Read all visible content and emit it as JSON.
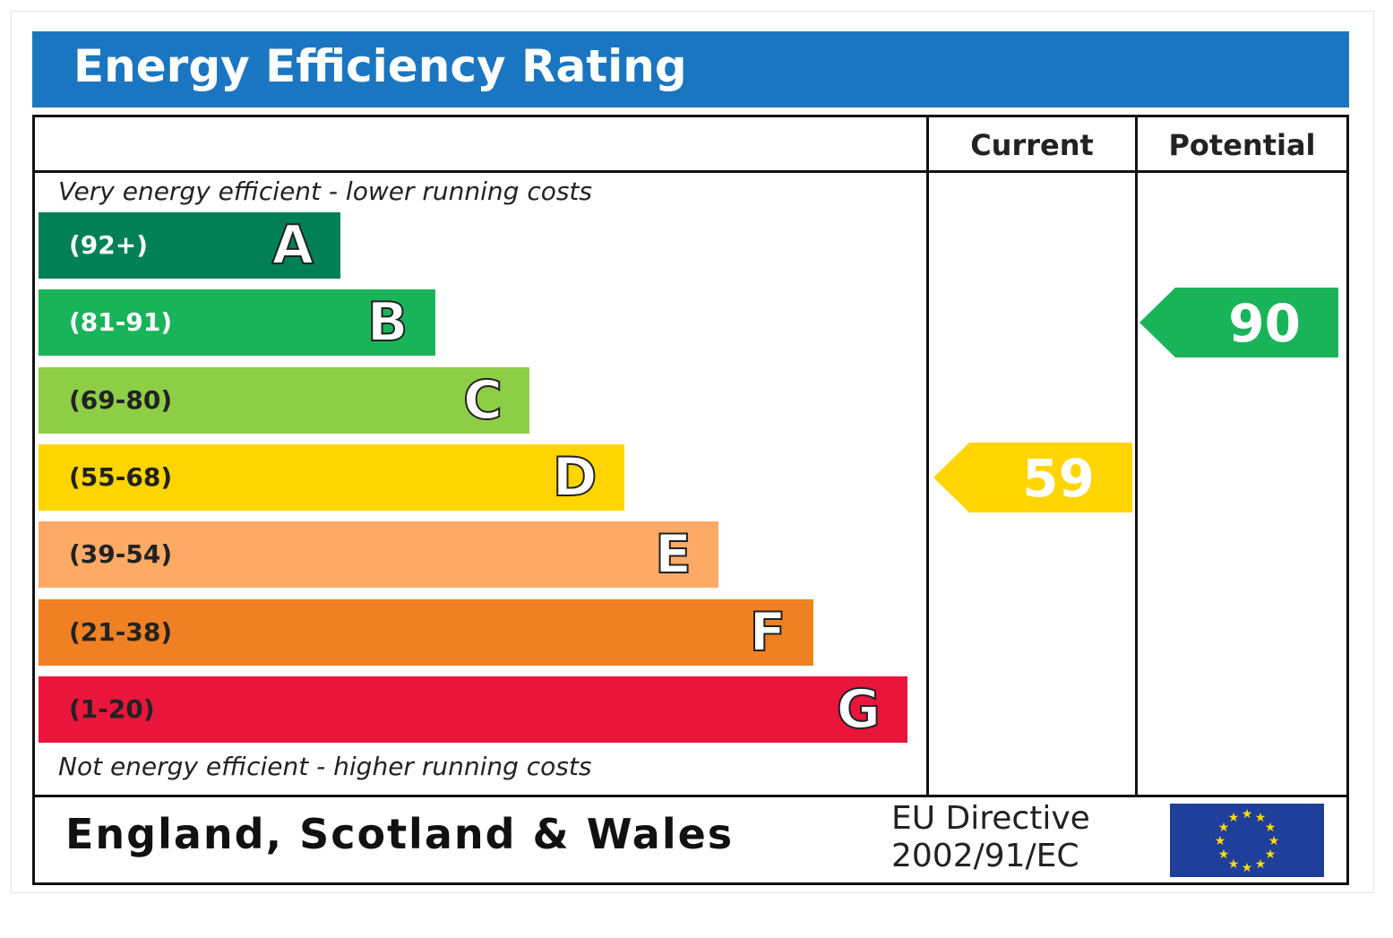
{
  "header": {
    "title": "Energy Efficiency Rating"
  },
  "columns": {
    "current": "Current",
    "potential": "Potential"
  },
  "notes": {
    "top": "Very energy efficient - lower running costs",
    "bottom": "Not energy efficient - higher running costs"
  },
  "footer": {
    "region": "England, Scotland & Wales",
    "directive_line1": "EU Directive",
    "directive_line2": "2002/91/EC"
  },
  "chart_data": {
    "type": "bar",
    "title": "Energy Efficiency Rating",
    "bands": [
      {
        "letter": "A",
        "range": "(92+)",
        "min": 92,
        "max": 100,
        "color": "#008054",
        "range_color": "#ffffff"
      },
      {
        "letter": "B",
        "range": "(81-91)",
        "min": 81,
        "max": 91,
        "color": "#19b459",
        "range_color": "#ffffff"
      },
      {
        "letter": "C",
        "range": "(69-80)",
        "min": 69,
        "max": 80,
        "color": "#8dce46",
        "range_color": "#222222"
      },
      {
        "letter": "D",
        "range": "(55-68)",
        "min": 55,
        "max": 68,
        "color": "#ffd500",
        "range_color": "#222222"
      },
      {
        "letter": "E",
        "range": "(39-54)",
        "min": 39,
        "max": 54,
        "color": "#fcaa65",
        "range_color": "#222222"
      },
      {
        "letter": "F",
        "range": "(21-38)",
        "min": 21,
        "max": 38,
        "color": "#ef8023",
        "range_color": "#222222"
      },
      {
        "letter": "G",
        "range": "(1-20)",
        "min": 1,
        "max": 20,
        "color": "#e9153b",
        "range_color": "#222222"
      }
    ],
    "current": {
      "label": "Current",
      "value": 59,
      "band": "D"
    },
    "potential": {
      "label": "Potential",
      "value": 90,
      "band": "B"
    }
  },
  "colors": {
    "title_bar": "#1b76c1",
    "flag_blue": "#1f3f9a",
    "flag_star": "#ffdd00"
  }
}
